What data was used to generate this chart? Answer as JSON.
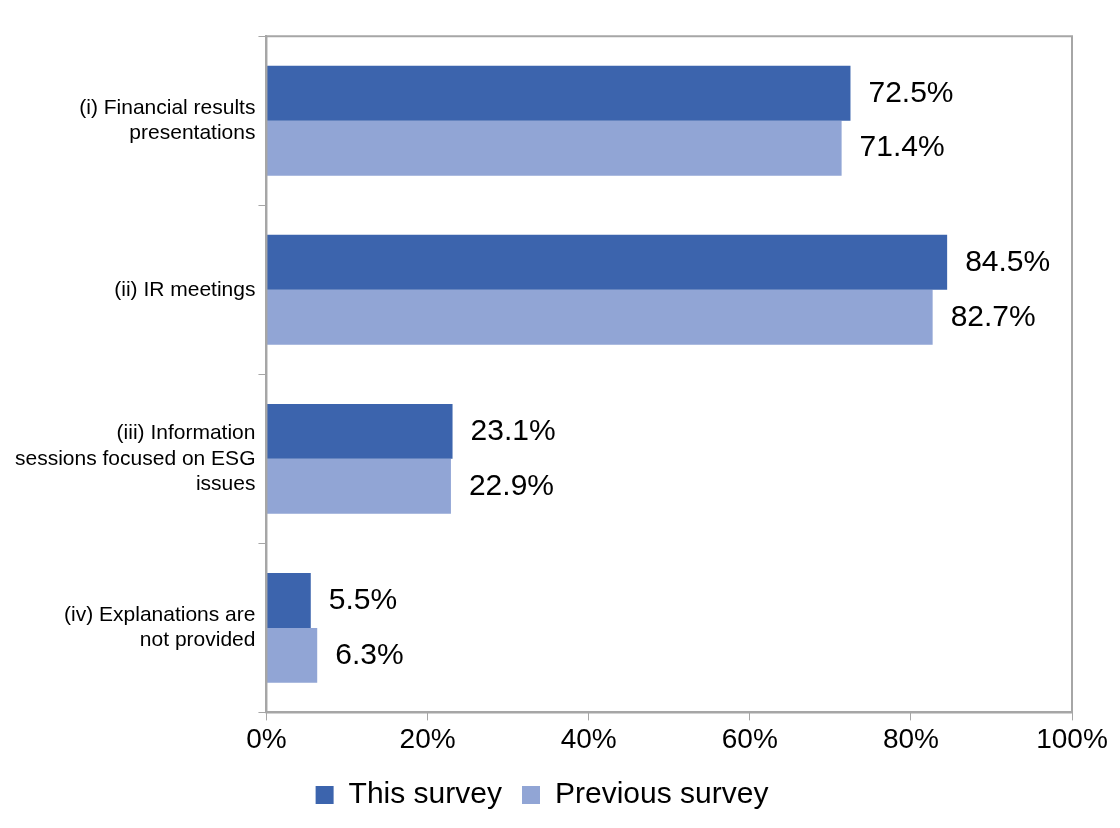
{
  "chart_data": {
    "type": "bar",
    "orientation": "horizontal",
    "categories": [
      "(i) Financial results presentations",
      "(ii) IR meetings",
      "(iii) Information sessions focused on ESG issues",
      "(iv) Explanations are not provided"
    ],
    "series": [
      {
        "name": "This survey",
        "color": "#3c64ad",
        "values": [
          72.5,
          84.5,
          23.1,
          5.5
        ],
        "value_labels": [
          "72.5%",
          "84.5%",
          "23.1%",
          "5.5%"
        ]
      },
      {
        "name": "Previous survey",
        "color": "#91a5d5",
        "values": [
          71.4,
          82.7,
          22.9,
          6.3
        ],
        "value_labels": [
          "71.4%",
          "82.7%",
          "22.9%",
          "6.3%"
        ]
      }
    ],
    "xlim": [
      0,
      100
    ],
    "xticks": [
      {
        "value": 0,
        "label": "0%"
      },
      {
        "value": 20,
        "label": "20%"
      },
      {
        "value": 40,
        "label": "40%"
      },
      {
        "value": 60,
        "label": "60%"
      },
      {
        "value": 80,
        "label": "80%"
      },
      {
        "value": 100,
        "label": "100%"
      }
    ],
    "grid": false,
    "legend": "bottom"
  }
}
